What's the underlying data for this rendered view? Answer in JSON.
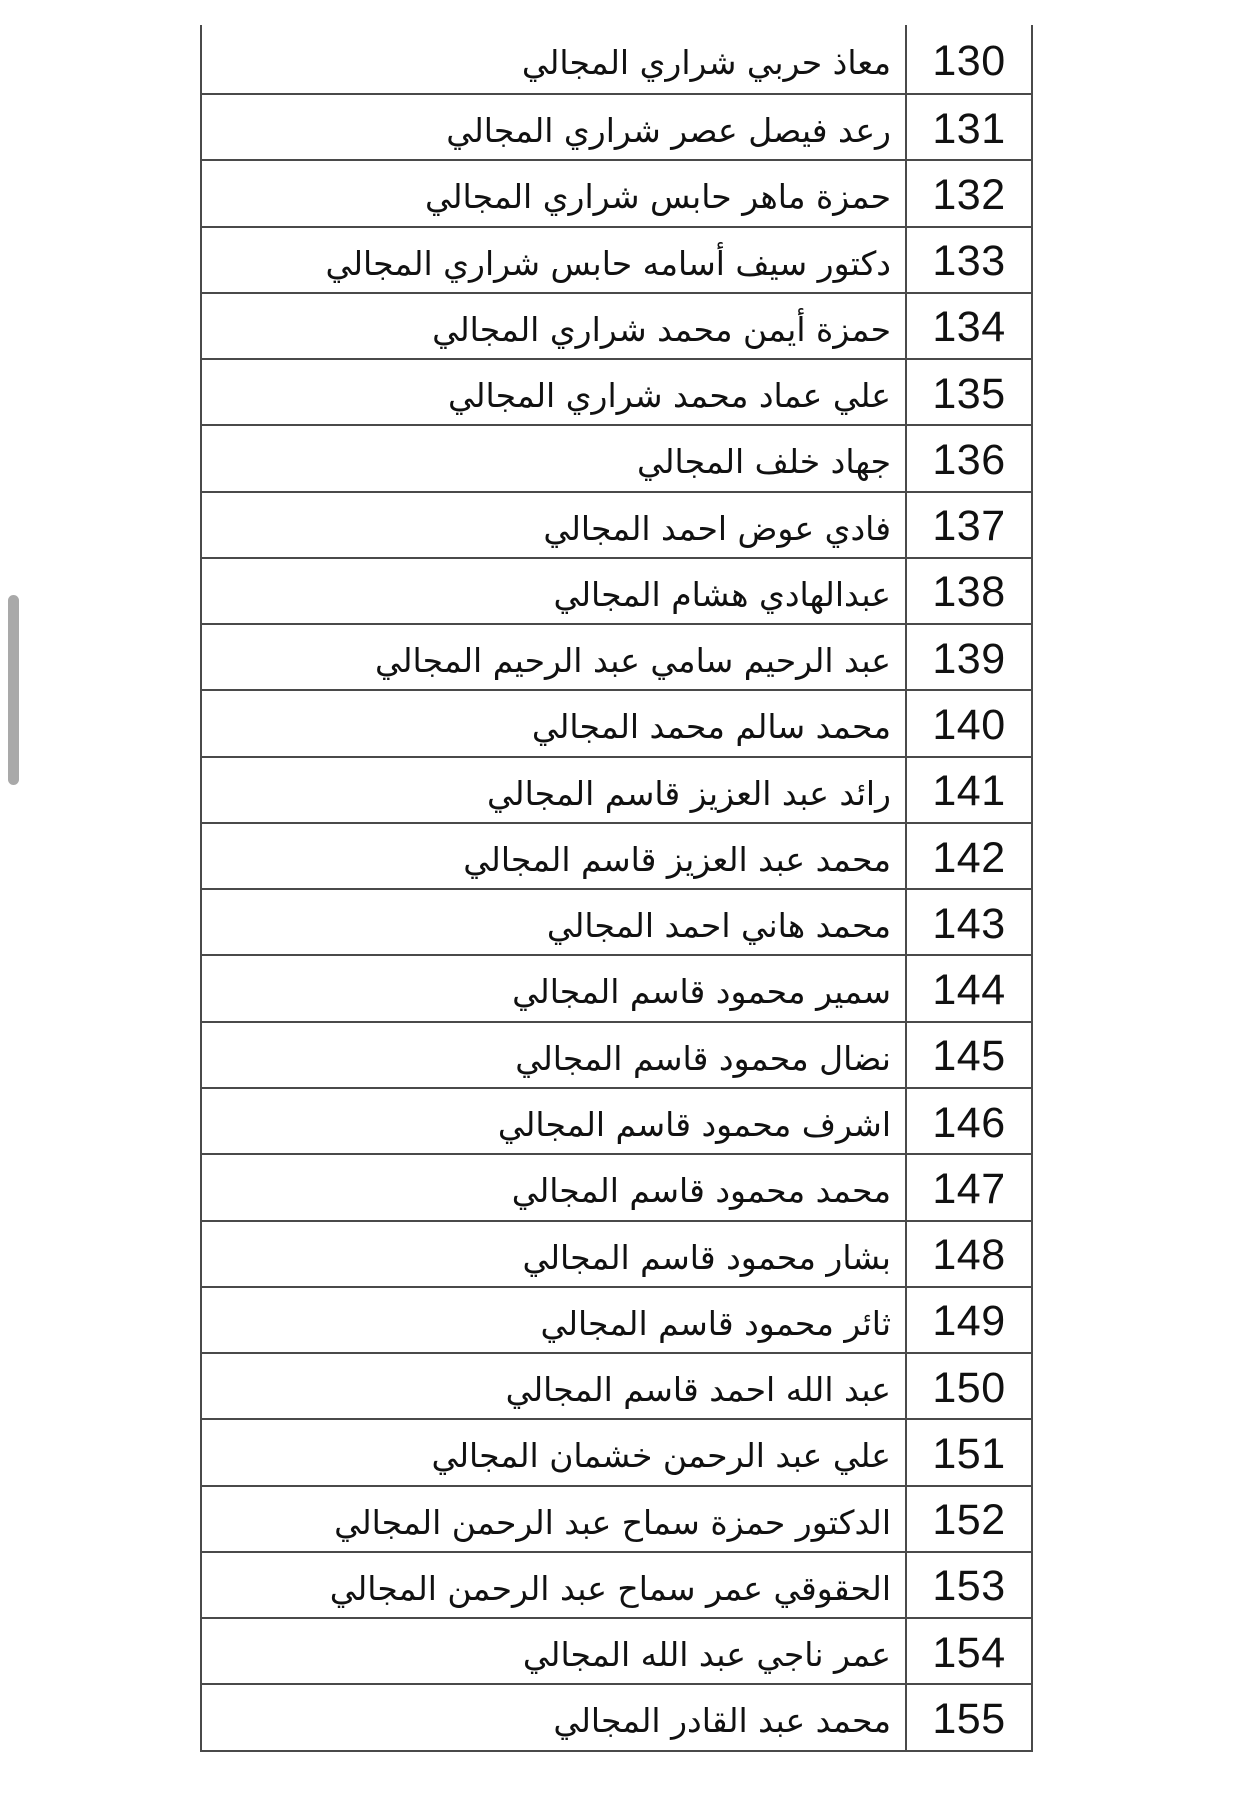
{
  "page": {
    "language": "ar",
    "direction": "rtl",
    "type": "name-list-table"
  },
  "colors": {
    "border": "#4a4a4a",
    "text": "#111111",
    "scrollbar_thumb": "#a9a9a9",
    "background": "#ffffff"
  },
  "scrollbar": {
    "visible": true
  },
  "table": {
    "columns": [
      {
        "key": "name",
        "align": "right"
      },
      {
        "key": "number",
        "align": "center"
      }
    ],
    "first_row_top_border_hidden": true,
    "rows": [
      {
        "number": "130",
        "name": "معاذ حربي شراري المجالي"
      },
      {
        "number": "131",
        "name": "رعد فيصل عصر شراري المجالي"
      },
      {
        "number": "132",
        "name": "حمزة ماهر حابس شراري المجالي"
      },
      {
        "number": "133",
        "name": "دكتور سيف أسامه حابس شراري المجالي"
      },
      {
        "number": "134",
        "name": "حمزة أيمن محمد شراري المجالي"
      },
      {
        "number": "135",
        "name": "علي عماد محمد شراري المجالي"
      },
      {
        "number": "136",
        "name": "جهاد خلف المجالي"
      },
      {
        "number": "137",
        "name": "فادي عوض احمد المجالي"
      },
      {
        "number": "138",
        "name": "عبدالهادي هشام المجالي"
      },
      {
        "number": "139",
        "name": "عبد الرحيم سامي عبد الرحيم المجالي"
      },
      {
        "number": "140",
        "name": "محمد سالم محمد المجالي"
      },
      {
        "number": "141",
        "name": "رائد عبد العزيز قاسم المجالي"
      },
      {
        "number": "142",
        "name": "محمد عبد العزيز قاسم المجالي"
      },
      {
        "number": "143",
        "name": "محمد هاني احمد المجالي"
      },
      {
        "number": "144",
        "name": "سمير محمود قاسم المجالي"
      },
      {
        "number": "145",
        "name": "نضال محمود قاسم المجالي"
      },
      {
        "number": "146",
        "name": "اشرف محمود قاسم المجالي"
      },
      {
        "number": "147",
        "name": "محمد محمود قاسم المجالي"
      },
      {
        "number": "148",
        "name": "بشار محمود قاسم المجالي"
      },
      {
        "number": "149",
        "name": "ثائر  محمود قاسم المجالي"
      },
      {
        "number": "150",
        "name": "عبد الله احمد قاسم المجالي"
      },
      {
        "number": "151",
        "name": "علي عبد الرحمن خشمان المجالي"
      },
      {
        "number": "152",
        "name": "الدكتور حمزة سماح عبد الرحمن المجالي"
      },
      {
        "number": "153",
        "name": "الحقوقي  عمر سماح عبد الرحمن المجالي"
      },
      {
        "number": "154",
        "name": "عمر ناجي عبد الله المجالي"
      },
      {
        "number": "155",
        "name": "محمد عبد القادر المجالي"
      }
    ]
  }
}
